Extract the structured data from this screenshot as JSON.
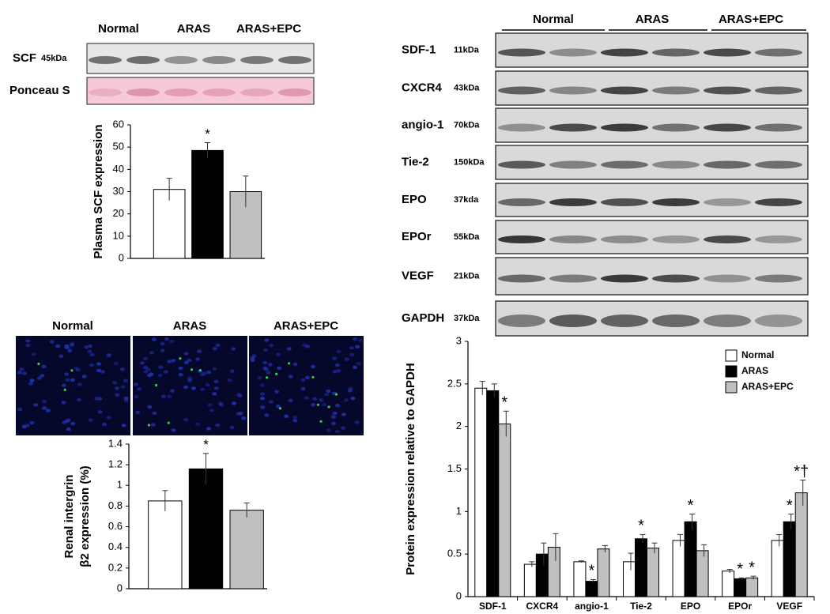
{
  "scf_blot": {
    "lanes": [
      "Normal",
      "ARAS",
      "ARAS+EPC"
    ],
    "rows": [
      {
        "name": "SCF",
        "size": "45kDa"
      },
      {
        "name": "Ponceau S"
      }
    ]
  },
  "images": {
    "labels": [
      "Normal",
      "ARAS",
      "ARAS+EPC"
    ]
  },
  "protein_blot": {
    "lanes": [
      "Normal",
      "ARAS",
      "ARAS+EPC"
    ],
    "rows": [
      {
        "name": "SDF-1",
        "size": "11kDa"
      },
      {
        "name": "CXCR4",
        "size": "43kDa"
      },
      {
        "name": "angio-1",
        "size": "70kDa"
      },
      {
        "name": "Tie-2",
        "size": "150kDa"
      },
      {
        "name": "EPO",
        "size": "37kda"
      },
      {
        "name": "EPOr",
        "size": "55kDa"
      },
      {
        "name": "VEGF",
        "size": "21kDa"
      },
      {
        "name": "GAPDH",
        "size": "37kDa"
      }
    ]
  },
  "chart_data": [
    {
      "type": "bar",
      "ylabel": "Plasma SCF expression",
      "categories": [
        null,
        null,
        null
      ],
      "values": [
        31,
        48.5,
        30
      ],
      "errors": [
        5,
        3.5,
        7
      ],
      "colors": [
        "#ffffff",
        "#000000",
        "#c0c0c0"
      ],
      "annotations": [
        null,
        "*",
        null
      ],
      "ylim": [
        0,
        60
      ],
      "yticks": [
        0,
        10,
        20,
        30,
        40,
        50,
        60
      ]
    },
    {
      "type": "bar",
      "ylabel": [
        "Renal intergrin",
        "β2 expression (%)"
      ],
      "categories": [
        null,
        null,
        null
      ],
      "values": [
        0.85,
        1.16,
        0.76
      ],
      "errors": [
        0.1,
        0.15,
        0.07
      ],
      "colors": [
        "#ffffff",
        "#000000",
        "#c0c0c0"
      ],
      "annotations": [
        null,
        "*",
        null
      ],
      "ylim": [
        0,
        1.4
      ],
      "yticks": [
        0,
        0.2,
        0.4,
        0.6,
        0.8,
        1,
        1.2,
        1.4
      ]
    },
    {
      "type": "grouped-bar",
      "ylabel": "Protein expression relative to GAPDH",
      "categories": [
        "SDF-1",
        "CXCR4",
        "angio-1",
        "Tie-2",
        "EPO",
        "EPOr",
        "VEGF"
      ],
      "series": [
        {
          "name": "Normal",
          "color": "#ffffff",
          "values": [
            2.45,
            0.38,
            0.41,
            0.41,
            0.66,
            0.3,
            0.66
          ],
          "errors": [
            0.08,
            0.03,
            0.01,
            0.1,
            0.07,
            0.02,
            0.07
          ],
          "annotations": [
            null,
            null,
            null,
            null,
            null,
            null,
            null
          ]
        },
        {
          "name": "ARAS",
          "color": "#000000",
          "values": [
            2.42,
            0.5,
            0.18,
            0.68,
            0.88,
            0.21,
            0.88
          ],
          "errors": [
            0.08,
            0.13,
            0.02,
            0.05,
            0.09,
            0.01,
            0.09
          ],
          "annotations": [
            null,
            null,
            "*",
            "*",
            "*",
            "*",
            "*"
          ]
        },
        {
          "name": "ARAS+EPC",
          "color": "#c0c0c0",
          "values": [
            2.03,
            0.58,
            0.56,
            0.57,
            0.54,
            0.22,
            1.22
          ],
          "errors": [
            0.15,
            0.16,
            0.04,
            0.06,
            0.07,
            0.02,
            0.15
          ],
          "annotations": [
            "*",
            null,
            null,
            null,
            null,
            "*",
            "*†"
          ]
        }
      ],
      "ylim": [
        0,
        3
      ],
      "yticks": [
        0,
        0.5,
        1,
        1.5,
        2,
        2.5,
        3
      ],
      "legend": "upper right"
    }
  ]
}
